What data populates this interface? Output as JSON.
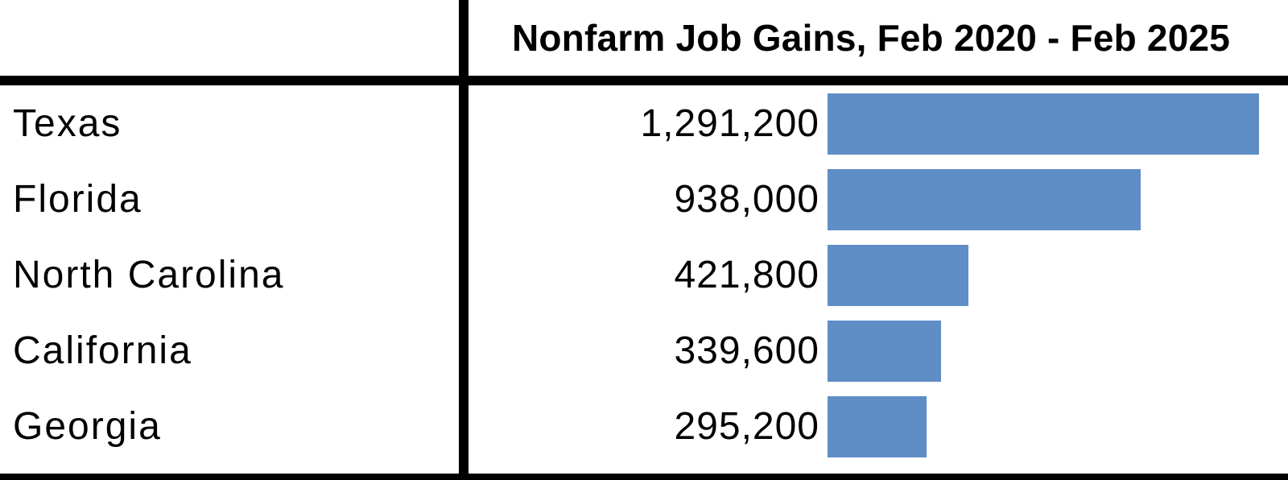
{
  "chart_data": {
    "type": "table",
    "header": "Nonfarm Job Gains, Feb 2020 - Feb 2025",
    "rows": [
      {
        "state": "Texas",
        "label": "1,291,200",
        "value": 1291200
      },
      {
        "state": "Florida",
        "label": "938,000",
        "value": 938000
      },
      {
        "state": "North Carolina",
        "label": "421,800",
        "value": 421800
      },
      {
        "state": "California",
        "label": "339,600",
        "value": 339600
      },
      {
        "state": "Georgia",
        "label": "295,200",
        "value": 295200
      }
    ],
    "bar_color": "#5f8dc6"
  }
}
